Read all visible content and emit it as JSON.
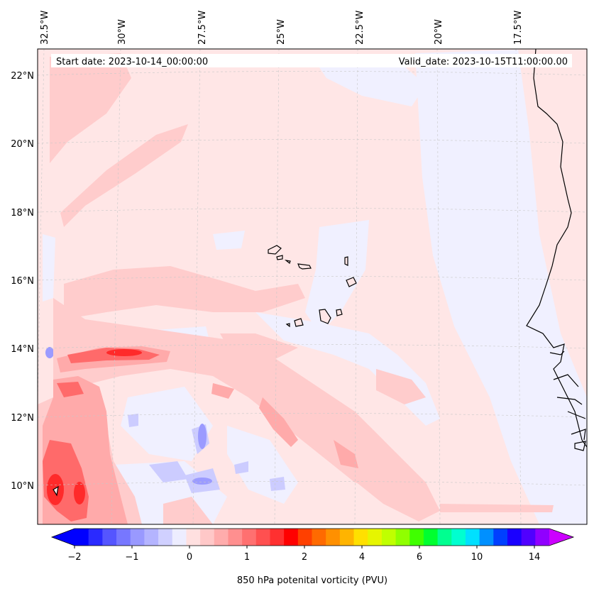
{
  "map": {
    "start_label": "Start date: 2023-10-14_00:00:00",
    "valid_label": "Valid_date: 2023-10-15T11:00:00.00",
    "lon_labels": [
      "32.5°W",
      "30°W",
      "27.5°W",
      "25°W",
      "22.5°W",
      "20°W",
      "17.5°W"
    ],
    "lat_labels": [
      "22°N",
      "20°N",
      "18°N",
      "16°N",
      "14°N",
      "12°N",
      "10°N"
    ],
    "colors": {
      "background_pv": "#ffe6e6",
      "weak_negative": "#f0f0ff",
      "positive_low": "#ffcccc",
      "positive_mid": "#ffaaaa",
      "positive_high": "#ff6a6a",
      "positive_peak": "#ff2a2a",
      "negative_mid": "#ccccff",
      "negative_strong": "#9b9bff",
      "coastline": "#000000"
    }
  },
  "colorbar": {
    "label": "850 hPa potenital vorticity (PVU)",
    "tick_labels": [
      "−2",
      "−1",
      "0",
      "1",
      "2",
      "4",
      "6",
      "10",
      "14"
    ],
    "colors": [
      "#0000ff",
      "#2a2aff",
      "#5555ff",
      "#7777ff",
      "#9999ff",
      "#b4b4ff",
      "#d0d0ff",
      "#ededff",
      "#ffe0e0",
      "#ffc8c8",
      "#ffacac",
      "#ff8f8f",
      "#ff7070",
      "#ff5050",
      "#ff3030",
      "#ff0000",
      "#ff4000",
      "#ff6a00",
      "#ff9000",
      "#ffb400",
      "#ffe000",
      "#e6f500",
      "#c0ff00",
      "#90ff00",
      "#40ff00",
      "#00ff30",
      "#00ff90",
      "#00ffd0",
      "#00e0ff",
      "#0090ff",
      "#0040ff",
      "#1a00ff",
      "#5000ff",
      "#9000ff"
    ],
    "under_color": "#0000ff",
    "over_color": "#cc00ff"
  }
}
